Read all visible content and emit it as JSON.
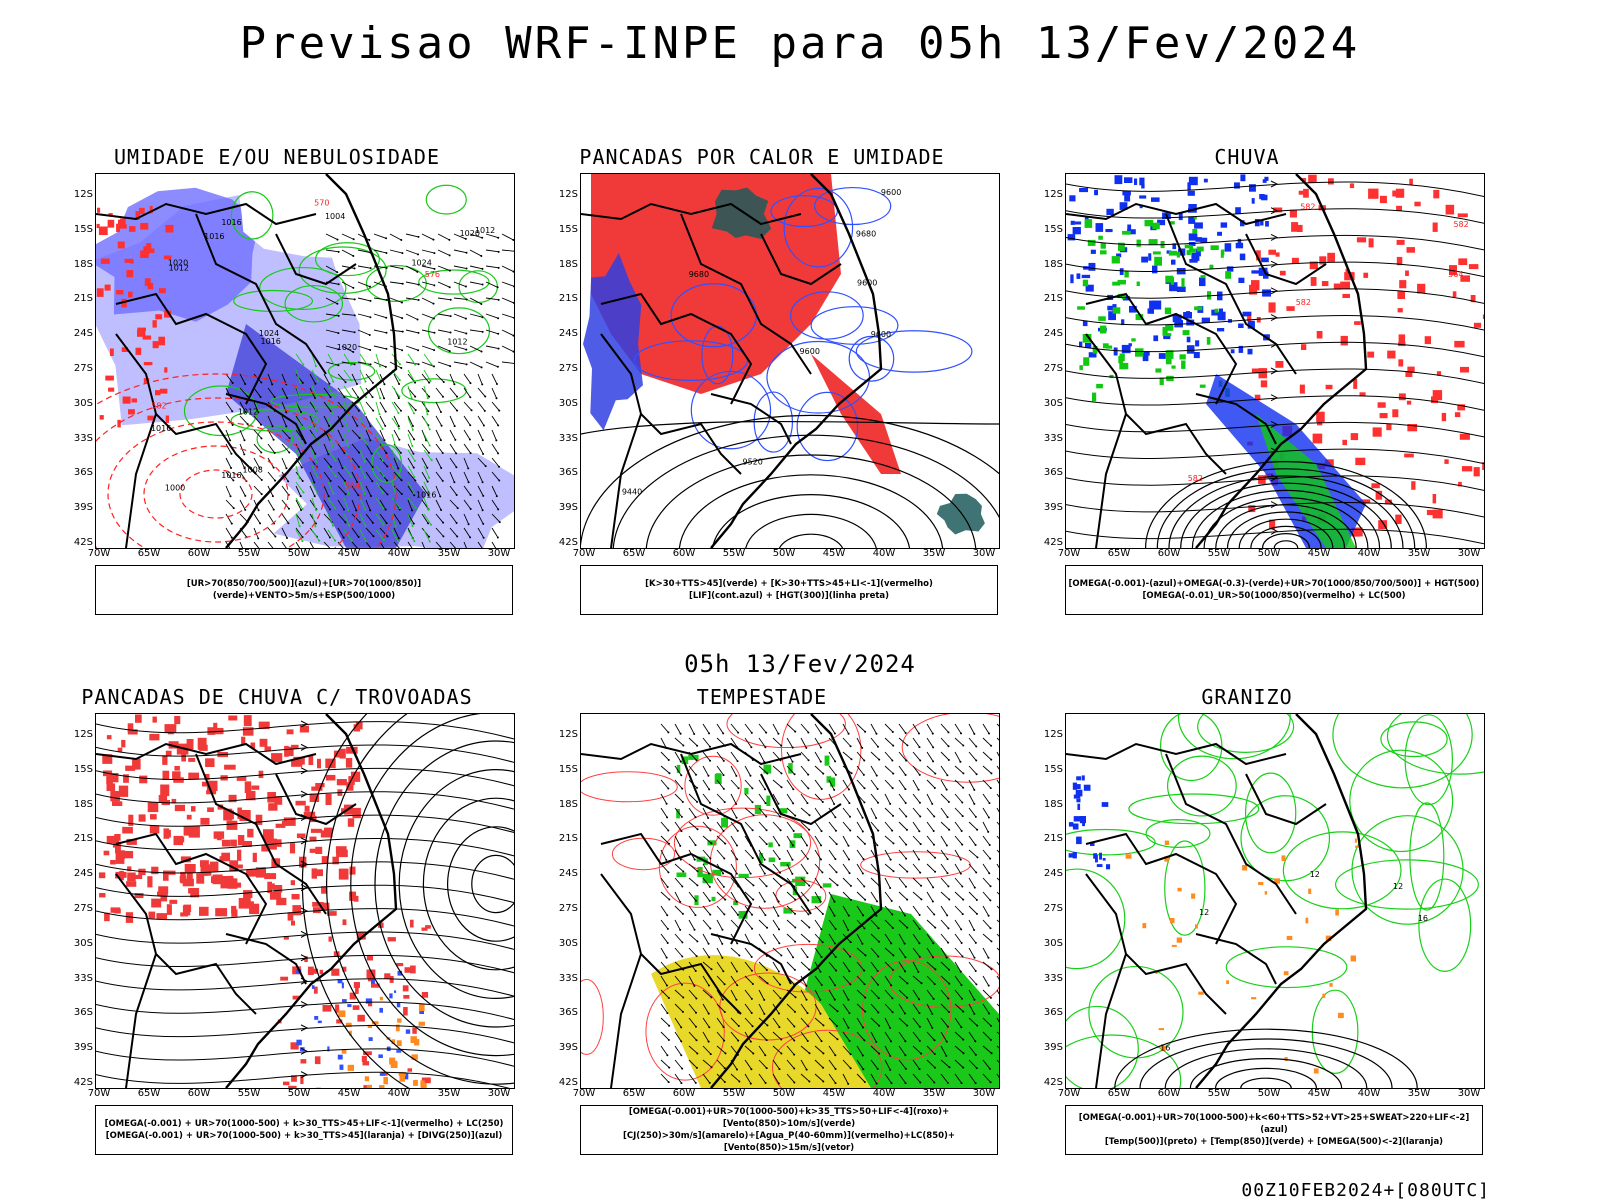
{
  "main_title": "Previsao WRF-INPE  para 05h 13/Fev/2024",
  "subtitle": "05h 13/Fev/2024",
  "footer": "00Z10FEB2024+[080UTC]",
  "lat_labels": [
    "12S",
    "15S",
    "18S",
    "21S",
    "24S",
    "27S",
    "30S",
    "33S",
    "36S",
    "39S",
    "42S"
  ],
  "lon_labels": [
    "70W",
    "65W",
    "60W",
    "55W",
    "50W",
    "45W",
    "40W",
    "35W",
    "30W"
  ],
  "panels": [
    {
      "title": "UMIDADE E/OU NEBULOSIDADE",
      "legend": [
        "[UR>70(850/700/500)](azul)+[UR>70(1000/850)](verde)+VENTO>5m/s+ESP(500/1000)"
      ],
      "labels": [
        "1016",
        "1012",
        "1016",
        "1016",
        "1016",
        "1012",
        "1020",
        "1016",
        "1012",
        "1020",
        "1024",
        "1016",
        "1020",
        "1012",
        "1008",
        "1004",
        "1000",
        "576",
        "570",
        "564",
        "582",
        "1024"
      ]
    },
    {
      "title": "PANCADAS POR CALOR E UMIDADE",
      "legend": [
        "[K>30+TTS>45](verde) + [K>30+TTS>45+LI<-1](vermelho)",
        "[LIF](cont.azul) + [HGT(300)](linha preta)"
      ],
      "labels": [
        "9600",
        "9680",
        "9600",
        "9680",
        "9600",
        "9600",
        "9440",
        "9520"
      ]
    },
    {
      "title": "CHUVA",
      "legend": [
        "[OMEGA(-0.001)-(azul)+OMEGA(-0.3)-(verde)+UR>70(1000/850/700/500)] + HGT(500)",
        "[OMEGA(-0.01)_UR>50(1000/850)(vermelho) + LC(500)"
      ],
      "labels": [
        "582",
        "582",
        "582",
        "582",
        "564"
      ]
    },
    {
      "title": "PANCADAS DE CHUVA C/ TROVOADAS",
      "legend": [
        "[OMEGA(-0.001) + UR>70(1000-500) + k>30_TTS>45+LIF<-1](vermelho) + LC(250)",
        "[OMEGA(-0.001) + UR>70(1000-500) + k>30_TTS>45](laranja) + [DIVG(250)](azul)"
      ],
      "labels": []
    },
    {
      "title": "TEMPESTADE",
      "legend": [
        "[OMEGA(-0.001)+UR>70(1000-500)+k>35_TTS>50+LIF<-4](roxo)+[Vento(850)>10m/s](verde)",
        "[CJ(250)>30m/s](amarelo)+[Agua_P(40-60mm)](vermelho)+LC(850)+[Vento(850)>15m/s](vetor)"
      ],
      "labels": []
    },
    {
      "title": "GRANIZO",
      "legend": [
        "[OMEGA(-0.001)+UR>70(1000-500)+k<60+TTS>52+VT>25+SWEAT>220+LIF<-2](azul)",
        "[Temp(500)](preto) + [Temp(850)](verde) + [OMEGA(500)<-2](laranja)"
      ],
      "labels": [
        "12",
        "12",
        "16",
        "16",
        "12"
      ]
    }
  ]
}
